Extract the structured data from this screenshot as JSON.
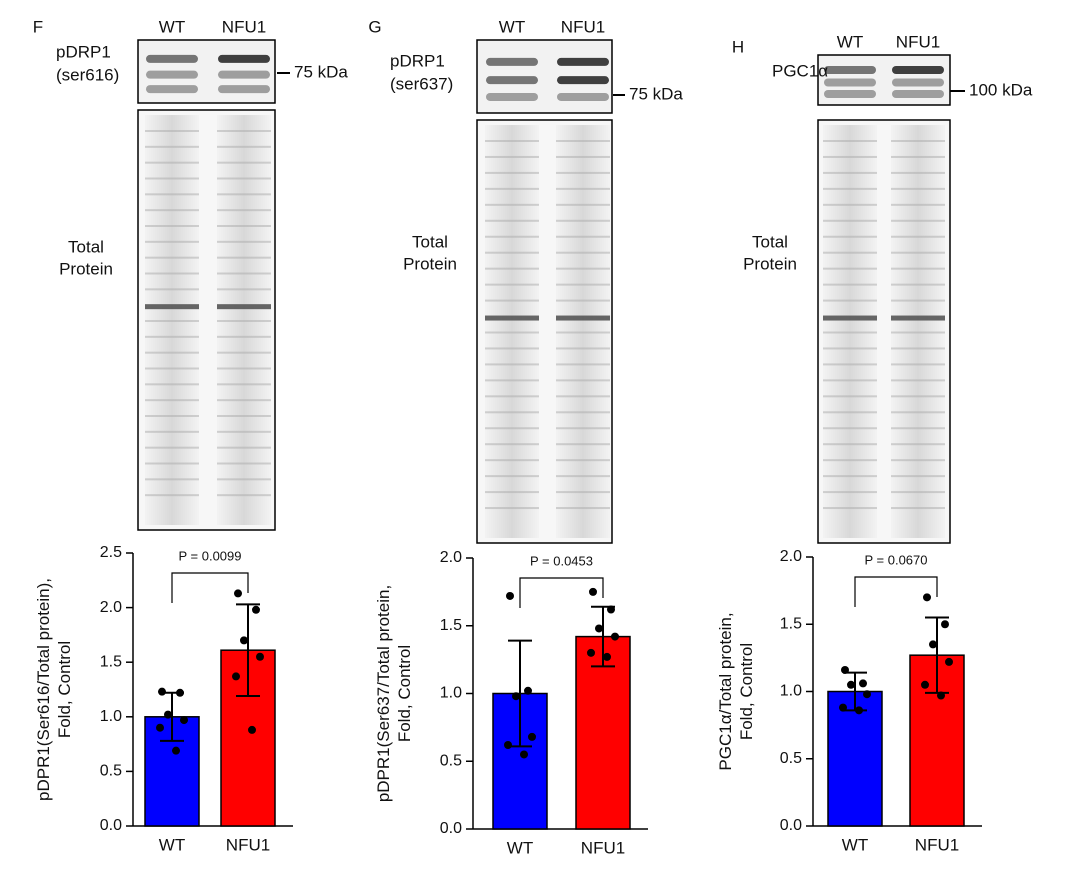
{
  "panels": [
    {
      "letter": "F",
      "lanes": [
        "WT",
        "NFU1"
      ],
      "protein": [
        "pDRP1",
        "(ser616)"
      ],
      "marker": "75 kDa",
      "total": [
        "Total",
        "Protein"
      ]
    },
    {
      "letter": "G",
      "lanes": [
        "WT",
        "NFU1"
      ],
      "protein": [
        "pDRP1",
        "(ser637)"
      ],
      "marker": "75 kDa",
      "total": [
        "Total",
        "Protein"
      ]
    },
    {
      "letter": "H",
      "lanes": [
        "WT",
        "NFU1"
      ],
      "protein": [
        "PGC1α"
      ],
      "marker": "100 kDa",
      "total": [
        "Total",
        "Protein"
      ]
    }
  ],
  "chart_data": [
    {
      "type": "bar",
      "y_label": [
        "pDPR1(Ser616/Total protein),",
        "Fold, Control"
      ],
      "categories": [
        "WT",
        "NFU1"
      ],
      "values": [
        1.0,
        1.61
      ],
      "errors": [
        0.22,
        0.42
      ],
      "colors": [
        "#0000ff",
        "#ff0000"
      ],
      "points": [
        [
          1.23,
          1.22,
          1.02,
          0.97,
          0.9,
          0.69
        ],
        [
          2.13,
          1.98,
          1.7,
          1.55,
          1.37,
          0.88
        ]
      ],
      "annotation": "P = 0.0099",
      "ylim": [
        0,
        2.5
      ],
      "yticks": [
        {
          "value": 0,
          "label": "0.0"
        },
        0.5,
        {
          "value": 1,
          "label": "1.0"
        },
        1.5,
        {
          "value": 2,
          "label": "2.0"
        },
        2.5
      ]
    },
    {
      "type": "bar",
      "y_label": [
        "pDPR1(Ser637/Total protein,",
        "Fold, Control"
      ],
      "categories": [
        "WT",
        "NFU1"
      ],
      "values": [
        1.0,
        1.42
      ],
      "errors": [
        0.39,
        0.22
      ],
      "colors": [
        "#0000ff",
        "#ff0000"
      ],
      "points": [
        [
          1.72,
          1.02,
          0.98,
          0.68,
          0.62,
          0.55
        ],
        [
          1.75,
          1.62,
          1.48,
          1.42,
          1.3,
          1.27
        ]
      ],
      "annotation": "P = 0.0453",
      "ylim": [
        0,
        2
      ],
      "yticks": [
        {
          "value": 0,
          "label": "0.0"
        },
        0.5,
        {
          "value": 1,
          "label": "1.0"
        },
        1.5,
        {
          "value": 2,
          "label": "2.0"
        }
      ]
    },
    {
      "type": "bar",
      "y_label": [
        "PGC1α/Total protein,",
        "Fold, Control"
      ],
      "categories": [
        "WT",
        "NFU1"
      ],
      "values": [
        1.0,
        1.27
      ],
      "errors": [
        0.14,
        0.28
      ],
      "colors": [
        "#0000ff",
        "#ff0000"
      ],
      "points": [
        [
          1.16,
          1.06,
          1.05,
          0.98,
          0.88,
          0.86
        ],
        [
          1.7,
          1.5,
          1.35,
          1.22,
          1.05,
          0.97
        ]
      ],
      "annotation": "P = 0.0670",
      "ylim": [
        0,
        2
      ],
      "yticks": [
        {
          "value": 0,
          "label": "0.0"
        },
        0.5,
        {
          "value": 1,
          "label": "1.0"
        },
        1.5,
        {
          "value": 2,
          "label": "2.0"
        }
      ]
    }
  ]
}
